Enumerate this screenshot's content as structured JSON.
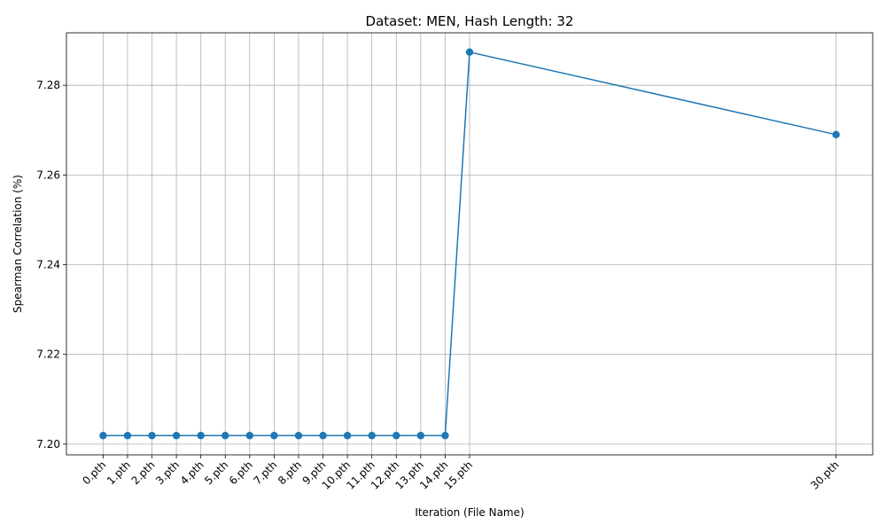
{
  "chart_data": {
    "type": "line",
    "title": "Dataset: MEN, Hash Length: 32",
    "xlabel": "Iteration (File Name)",
    "ylabel": "Spearman Correlation (%)",
    "x": [
      0,
      1,
      2,
      3,
      4,
      5,
      6,
      7,
      8,
      9,
      10,
      11,
      12,
      13,
      14,
      15,
      30
    ],
    "xtick_labels": [
      "0.pth",
      "1.pth",
      "2.pth",
      "3.pth",
      "4.pth",
      "5.pth",
      "6.pth",
      "7.pth",
      "8.pth",
      "9.pth",
      "10.pth",
      "11.pth",
      "12.pth",
      "13.pth",
      "14.pth",
      "15.pth",
      "30.pth"
    ],
    "series": [
      {
        "values": [
          7.2019,
          7.2019,
          7.2019,
          7.2019,
          7.2019,
          7.2019,
          7.2019,
          7.2019,
          7.2019,
          7.2019,
          7.2019,
          7.2019,
          7.2019,
          7.2019,
          7.2019,
          7.2874,
          7.269
        ],
        "color": "#1f77b4",
        "marker": "circle"
      }
    ],
    "xlim": [
      -1.5,
      31.5
    ],
    "ylim": [
      7.1976,
      7.2917
    ],
    "yticks": [
      7.2,
      7.22,
      7.24,
      7.26,
      7.28
    ],
    "ytick_labels": [
      "7.20",
      "7.22",
      "7.24",
      "7.26",
      "7.28"
    ],
    "grid": true,
    "xtick_rotation": 45
  }
}
